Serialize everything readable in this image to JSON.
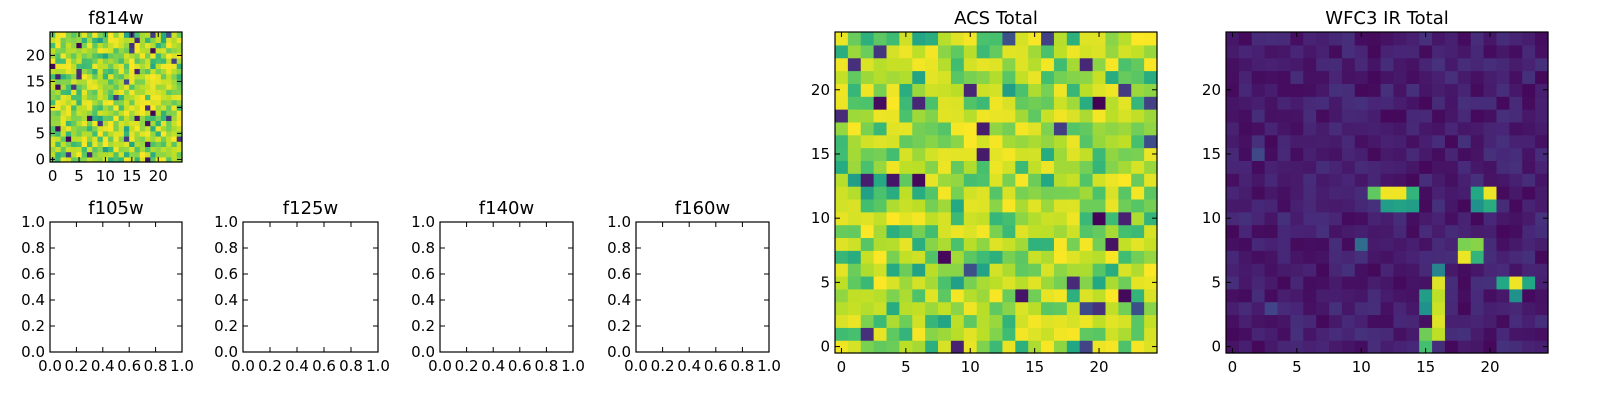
{
  "chart_data": [
    {
      "type": "heatmap",
      "title": "f814w",
      "grid_size": [
        25,
        25
      ],
      "xlim": [
        -0.5,
        24.5
      ],
      "ylim": [
        -0.5,
        24.5
      ],
      "xticks": [
        0,
        5,
        10,
        15,
        20
      ],
      "yticks": [
        0,
        5,
        10,
        15,
        20
      ],
      "colormap": "viridis",
      "pattern": "noise",
      "seed": 11
    },
    {
      "type": "empty",
      "title": "f105w",
      "xlim": [
        0.0,
        1.0
      ],
      "ylim": [
        0.0,
        1.0
      ],
      "xticks": [
        "0.0",
        "0.2",
        "0.4",
        "0.6",
        "0.8",
        "1.0"
      ],
      "yticks": [
        "0.0",
        "0.2",
        "0.4",
        "0.6",
        "0.8",
        "1.0"
      ]
    },
    {
      "type": "empty",
      "title": "f125w",
      "xlim": [
        0.0,
        1.0
      ],
      "ylim": [
        0.0,
        1.0
      ],
      "xticks": [
        "0.0",
        "0.2",
        "0.4",
        "0.6",
        "0.8",
        "1.0"
      ],
      "yticks": [
        "0.0",
        "0.2",
        "0.4",
        "0.6",
        "0.8",
        "1.0"
      ]
    },
    {
      "type": "empty",
      "title": "f140w",
      "xlim": [
        0.0,
        1.0
      ],
      "ylim": [
        0.0,
        1.0
      ],
      "xticks": [
        "0.0",
        "0.2",
        "0.4",
        "0.6",
        "0.8",
        "1.0"
      ],
      "yticks": [
        "0.0",
        "0.2",
        "0.4",
        "0.6",
        "0.8",
        "1.0"
      ]
    },
    {
      "type": "empty",
      "title": "f160w",
      "xlim": [
        0.0,
        1.0
      ],
      "ylim": [
        0.0,
        1.0
      ],
      "xticks": [
        "0.0",
        "0.2",
        "0.4",
        "0.6",
        "0.8",
        "1.0"
      ],
      "yticks": [
        "0.0",
        "0.2",
        "0.4",
        "0.6",
        "0.8",
        "1.0"
      ]
    },
    {
      "type": "heatmap",
      "title": "ACS Total",
      "grid_size": [
        25,
        25
      ],
      "xlim": [
        -0.5,
        24.5
      ],
      "ylim": [
        -0.5,
        24.5
      ],
      "xticks": [
        0,
        5,
        10,
        15,
        20
      ],
      "yticks": [
        0,
        5,
        10,
        15,
        20
      ],
      "colormap": "viridis",
      "pattern": "noise",
      "seed": 29
    },
    {
      "type": "heatmap",
      "title": "WFC3 IR Total",
      "grid_size": [
        25,
        25
      ],
      "xlim": [
        -0.5,
        24.5
      ],
      "ylim": [
        -0.5,
        24.5
      ],
      "xticks": [
        0,
        5,
        10,
        15,
        20
      ],
      "yticks": [
        0,
        5,
        10,
        15,
        20
      ],
      "colormap": "viridis",
      "pattern": "sources",
      "seed": 47,
      "background_range": [
        0.02,
        0.14
      ],
      "bright_pixels": [
        {
          "x": 11,
          "y": 12,
          "v": 0.75
        },
        {
          "x": 12,
          "y": 12,
          "v": 0.98
        },
        {
          "x": 13,
          "y": 12,
          "v": 0.98
        },
        {
          "x": 14,
          "y": 12,
          "v": 0.65
        },
        {
          "x": 12,
          "y": 11,
          "v": 0.55
        },
        {
          "x": 13,
          "y": 11,
          "v": 0.58
        },
        {
          "x": 14,
          "y": 11,
          "v": 0.55
        },
        {
          "x": 19,
          "y": 12,
          "v": 0.6
        },
        {
          "x": 20,
          "y": 12,
          "v": 0.97
        },
        {
          "x": 19,
          "y": 11,
          "v": 0.5
        },
        {
          "x": 20,
          "y": 11,
          "v": 0.62
        },
        {
          "x": 18,
          "y": 8,
          "v": 0.8
        },
        {
          "x": 19,
          "y": 8,
          "v": 0.82
        },
        {
          "x": 18,
          "y": 7,
          "v": 0.97
        },
        {
          "x": 19,
          "y": 7,
          "v": 0.65
        },
        {
          "x": 16,
          "y": 6,
          "v": 0.45
        },
        {
          "x": 16,
          "y": 5,
          "v": 0.95
        },
        {
          "x": 16,
          "y": 4,
          "v": 0.9
        },
        {
          "x": 16,
          "y": 3,
          "v": 0.92
        },
        {
          "x": 16,
          "y": 2,
          "v": 0.95
        },
        {
          "x": 16,
          "y": 1,
          "v": 0.9
        },
        {
          "x": 15,
          "y": 4,
          "v": 0.55
        },
        {
          "x": 15,
          "y": 3,
          "v": 0.5
        },
        {
          "x": 15,
          "y": 1,
          "v": 0.78
        },
        {
          "x": 15,
          "y": 0,
          "v": 0.7
        },
        {
          "x": 21,
          "y": 5,
          "v": 0.6
        },
        {
          "x": 22,
          "y": 5,
          "v": 0.98
        },
        {
          "x": 23,
          "y": 5,
          "v": 0.6
        },
        {
          "x": 22,
          "y": 4,
          "v": 0.5
        },
        {
          "x": 10,
          "y": 8,
          "v": 0.35
        },
        {
          "x": 2,
          "y": 15,
          "v": 0.22
        },
        {
          "x": 3,
          "y": 3,
          "v": 0.2
        }
      ]
    }
  ]
}
